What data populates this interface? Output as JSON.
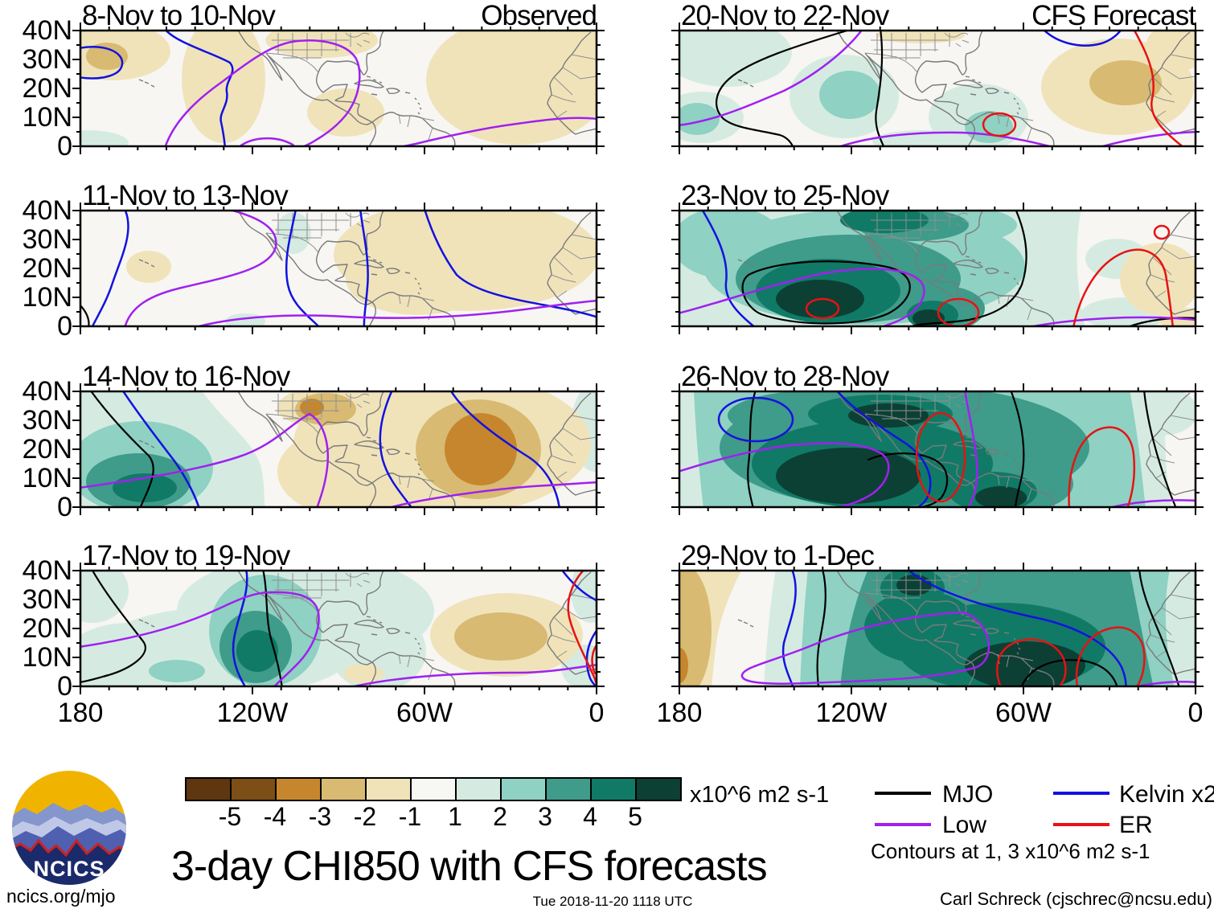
{
  "figure": {
    "title": "3-day CHI850 with CFS forecasts",
    "columns": [
      "Observed",
      "CFS Forecast"
    ],
    "panels": [
      {
        "id": "L1",
        "label": "8-Nov to 10-Nov",
        "column": "Observed"
      },
      {
        "id": "L2",
        "label": "11-Nov to 13-Nov",
        "column": "Observed"
      },
      {
        "id": "L3",
        "label": "14-Nov to 16-Nov",
        "column": "Observed"
      },
      {
        "id": "L4",
        "label": "17-Nov to 19-Nov",
        "column": "Observed"
      },
      {
        "id": "R1",
        "label": "20-Nov to 22-Nov",
        "column": "CFS Forecast"
      },
      {
        "id": "R2",
        "label": "23-Nov to 25-Nov",
        "column": "CFS Forecast"
      },
      {
        "id": "R3",
        "label": "26-Nov to 28-Nov",
        "column": "CFS Forecast"
      },
      {
        "id": "R4",
        "label": "29-Nov to 1-Dec",
        "column": "CFS Forecast"
      }
    ],
    "y_tick_labels": [
      "40N",
      "30N",
      "20N",
      "10N",
      "0"
    ],
    "x_tick_labels": [
      "180",
      "120W",
      "60W",
      "0"
    ]
  },
  "chart_data": {
    "type": "heatmap",
    "title": "3-day CHI850 with CFS forecasts",
    "variable": "CHI850 (850-hPa velocity potential) anomaly",
    "units": "x10^6 m2 s-1",
    "colorbar_levels": [
      -5,
      -4,
      -3,
      -2,
      -1,
      1,
      2,
      3,
      4,
      5
    ],
    "colorbar_colors": [
      "#5e3610",
      "#7d4e16",
      "#c6862e",
      "#d8ba72",
      "#f0e3ba",
      "#f7f7f3",
      "#d5ebe2",
      "#8fd1c2",
      "#3f9b8a",
      "#107a66",
      "#0c4034"
    ],
    "lon_range": [
      "180",
      "0"
    ],
    "lat_range": [
      "0",
      "40N"
    ],
    "x_ticks": [
      "180",
      "120W",
      "60W",
      "0"
    ],
    "y_ticks": [
      "40N",
      "30N",
      "20N",
      "10N",
      "0"
    ],
    "grid": false,
    "columns": [
      "Observed",
      "CFS Forecast"
    ],
    "contour_lines": [
      {
        "name": "MJO",
        "color": "#000000"
      },
      {
        "name": "Low",
        "color": "#a020f0"
      },
      {
        "name": "Kelvin x2",
        "color": "#1212e0"
      },
      {
        "name": "ER",
        "color": "#e81212"
      }
    ],
    "contour_note": "Contours at 1, 3 x10^6 m2 s-1",
    "panels": [
      {
        "label": "8-Nov to 10-Nov",
        "column": "Observed",
        "pattern": "weak negative (tan) anomalies over much of basin; Kelvin and Low contours over eastern Pacific"
      },
      {
        "label": "11-Nov to 13-Nov",
        "column": "Observed",
        "pattern": "near neutral; weak negative anomalies over Atlantic; several Kelvin contours"
      },
      {
        "label": "14-Nov to 16-Nov",
        "column": "Observed",
        "pattern": "positive (teal) anomalies near Date Line up to +5; strong negative (brown, -4) center over western Atlantic"
      },
      {
        "label": "17-Nov to 19-Nov",
        "column": "Observed",
        "pattern": "positive anomalies over eastern Pacific near 120W (+4); negative anomalies (-2) over central Atlantic"
      },
      {
        "label": "20-Nov to 22-Nov",
        "column": "CFS Forecast",
        "pattern": "weak positive anomalies eastern Pacific and Panama; negative anomalies near Africa; small ER circle near Colombia"
      },
      {
        "label": "23-Nov to 25-Nov",
        "column": "CFS Forecast",
        "pattern": "strong positive anomalies (+5) eastern Pacific and Caribbean with MJO, Low and ER contours"
      },
      {
        "label": "26-Nov to 28-Nov",
        "column": "CFS Forecast",
        "pattern": "very strong positive anomalies (+5) spanning eastern Pacific, Mexico and Caribbean"
      },
      {
        "label": "29-Nov to 1-Dec",
        "column": "CFS Forecast",
        "pattern": "strong positive anomalies across basin; weak negative (tan) anomalies near Date Line"
      }
    ]
  },
  "colorbar": {
    "tick_labels": [
      "-5",
      "-4",
      "-3",
      "-2",
      "-1",
      "1",
      "2",
      "3",
      "4",
      "5"
    ],
    "colors": [
      "#5e3610",
      "#7d4e16",
      "#c6862e",
      "#d8ba72",
      "#f0e3ba",
      "#f7f7f3",
      "#d5ebe2",
      "#8fd1c2",
      "#3f9b8a",
      "#107a66",
      "#0c4034"
    ],
    "unit": "x10^6 m2 s-1"
  },
  "legend": {
    "items": [
      {
        "label": "MJO",
        "color": "#000000"
      },
      {
        "label": "Kelvin x2",
        "color": "#1212e0"
      },
      {
        "label": "Low",
        "color": "#a020f0"
      },
      {
        "label": "ER",
        "color": "#e81212"
      }
    ],
    "note": "Contours at 1, 3 x10^6 m2 s-1"
  },
  "logo": {
    "text": "NCICS"
  },
  "footer": {
    "left": "ncics.org/mjo",
    "center": "Tue 2018-11-20 1118 UTC",
    "right": "Carl Schreck (cjschrec@ncsu.edu)"
  }
}
